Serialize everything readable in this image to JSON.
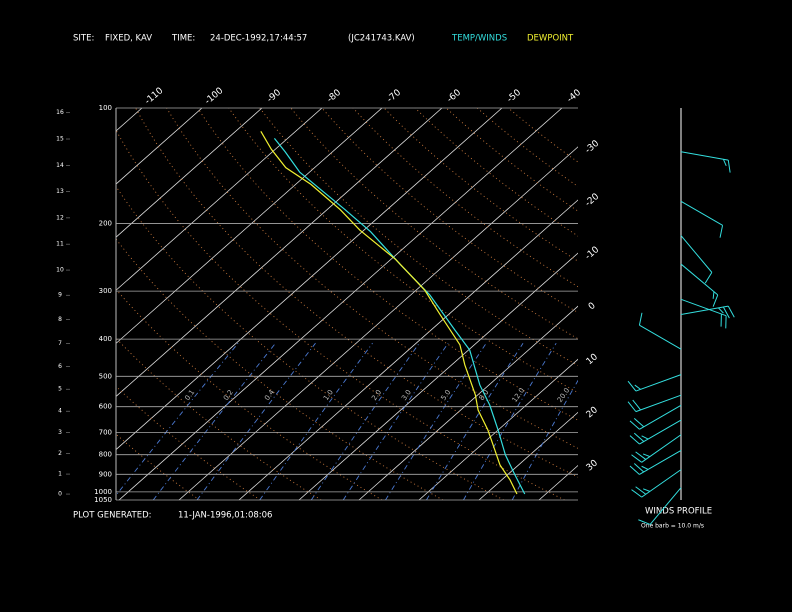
{
  "chart_data": {
    "type": "skewt",
    "site_label": "SITE:",
    "site": "FIXED, KAV",
    "time_label": "TIME:",
    "time": "24-DEC-1992,17:44:57",
    "file": "(JC241743.KAV)",
    "generated_label": "PLOT GENERATED:",
    "generated": "11-JAN-1996,01:08:06",
    "wind_title": "WINDS PROFILE",
    "wind_note": "One barb = 10.0 m/s",
    "log_y": true,
    "ylim": [
      1050,
      100
    ],
    "yticks": [
      100,
      200,
      300,
      400,
      500,
      600,
      700,
      800,
      900,
      1000,
      1050
    ],
    "xticks": [
      -110,
      -100,
      -90,
      -80,
      -70,
      -60,
      -50,
      -40,
      -30,
      -20,
      -10,
      0,
      10,
      20,
      30
    ],
    "height_ticks": [
      0,
      1,
      2,
      3,
      4,
      5,
      6,
      7,
      8,
      9,
      10,
      11,
      12,
      13,
      14,
      15,
      16
    ],
    "dry_adiabats": [
      -30,
      -20,
      -10,
      0,
      10,
      20,
      30,
      40,
      50,
      60,
      70,
      80,
      90,
      100,
      110,
      120,
      130,
      140,
      150,
      160
    ],
    "mixing_ratio": [
      {
        "value": 0.1,
        "label": "0.1"
      },
      {
        "value": 0.2,
        "label": "0.2"
      },
      {
        "value": 0.4,
        "label": "0.4"
      },
      {
        "value": 1,
        "label": "1.0"
      },
      {
        "value": 2,
        "label": "2.0"
      },
      {
        "value": 3,
        "label": "3.0"
      },
      {
        "value": 5,
        "label": "5.0"
      },
      {
        "value": 8,
        "label": "8.0"
      },
      {
        "value": 12,
        "label": "12.0"
      },
      {
        "value": 20,
        "label": "20.0"
      }
    ],
    "series": [
      {
        "name": "TEMP/WINDS",
        "color": "#33dede",
        "pressure": [
          1013,
          904,
          801,
          690,
          594,
          527,
          427,
          379,
          307,
          256,
          210,
          184,
          163,
          147,
          130,
          120
        ],
        "values": [
          26.5,
          21.3,
          15.9,
          10.0,
          3.9,
          -1.5,
          -9.8,
          -16.0,
          -26.8,
          -37.4,
          -48.6,
          -57.0,
          -64.9,
          -71.6,
          -77.9,
          -82.2
        ]
      },
      {
        "name": "DEWPOINT",
        "color": "#f0f030",
        "pressure": [
          1013,
          931,
          851,
          755,
          690,
          612,
          559,
          467,
          414,
          346,
          298,
          248,
          208,
          184,
          158,
          143,
          128,
          115
        ],
        "values": [
          25.2,
          21.4,
          16.9,
          12.0,
          8.3,
          2.9,
          -0.4,
          -7.8,
          -12.4,
          -21.3,
          -28.6,
          -39.2,
          -50.7,
          -57.8,
          -67.5,
          -74.8,
          -80.7,
          -85.8
        ]
      }
    ],
    "winds": {
      "pressure": [
        130,
        175,
        215,
        255,
        315,
        345,
        425,
        495,
        560,
        595,
        650,
        710,
        780,
        875,
        975
      ],
      "direction": [
        100,
        120,
        140,
        130,
        110,
        80,
        300,
        250,
        250,
        240,
        240,
        235,
        240,
        235,
        220
      ],
      "speed": [
        15,
        10,
        12,
        15,
        20,
        25,
        10,
        15,
        20,
        20,
        25,
        25,
        25,
        25,
        10
      ]
    }
  }
}
